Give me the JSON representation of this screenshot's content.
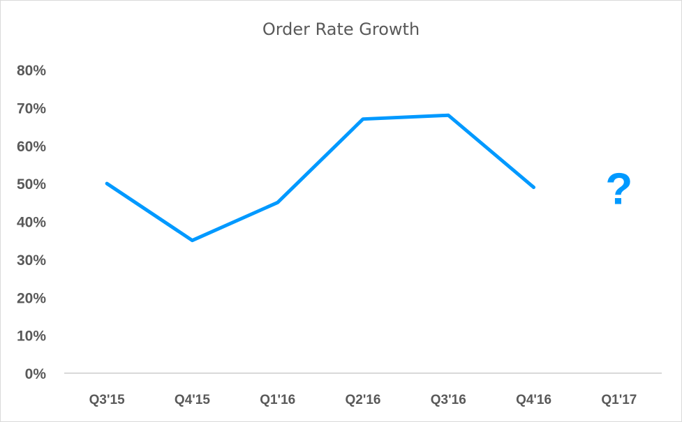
{
  "chart_data": {
    "type": "line",
    "title": "Order Rate Growth",
    "xlabel": "",
    "ylabel": "",
    "categories": [
      "Q3'15",
      "Q4'15",
      "Q1'16",
      "Q2'16",
      "Q3'16",
      "Q4'16",
      "Q1'17"
    ],
    "series": [
      {
        "name": "Order Rate Growth",
        "color": "#0099ff",
        "values": [
          0.5,
          0.35,
          0.45,
          0.67,
          0.68,
          0.49,
          null
        ]
      }
    ],
    "ylim": [
      0,
      0.8
    ],
    "y_ticks": [
      "0%",
      "10%",
      "20%",
      "30%",
      "40%",
      "50%",
      "60%",
      "70%",
      "80%"
    ],
    "grid": false,
    "legend": "none",
    "annotations": [
      {
        "text": "?",
        "category": "Q1'17",
        "approx_value": 0.45,
        "color": "#0099ff"
      }
    ]
  }
}
